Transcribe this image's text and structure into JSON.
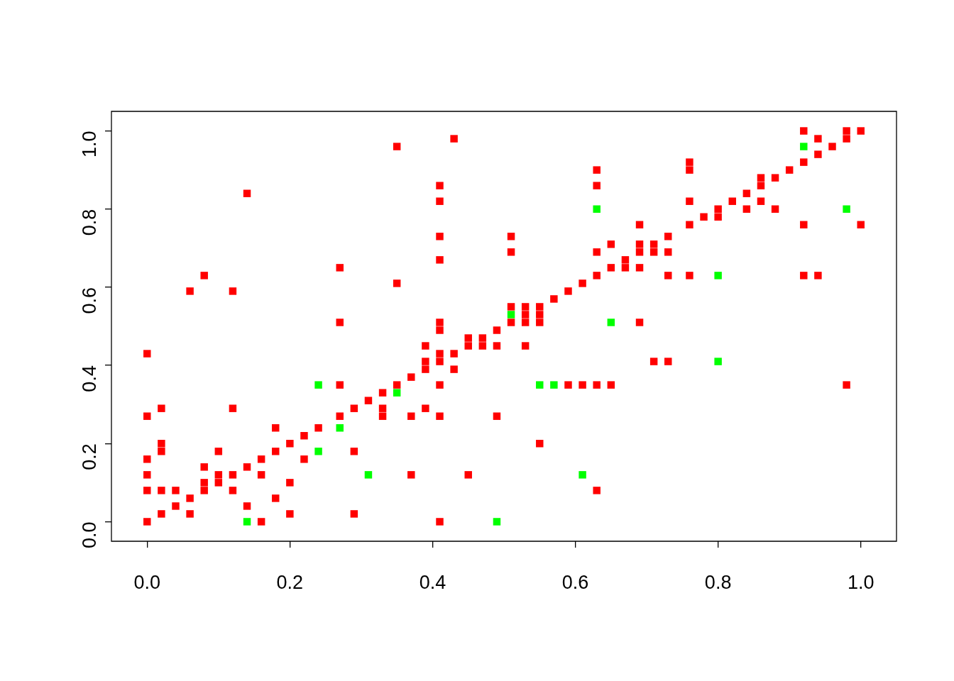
{
  "chart_data": {
    "type": "scatter",
    "marker": "square",
    "xlim": [
      -0.05,
      1.05
    ],
    "ylim": [
      -0.05,
      1.05
    ],
    "xticks": [
      {
        "value": 0,
        "label": "0.0"
      },
      {
        "value": 0.2,
        "label": "0.2"
      },
      {
        "value": 0.4,
        "label": "0.4"
      },
      {
        "value": 0.6,
        "label": "0.6"
      },
      {
        "value": 0.8,
        "label": "0.8"
      },
      {
        "value": 1,
        "label": "1.0"
      }
    ],
    "yticks": [
      {
        "value": 0,
        "label": "0.0"
      },
      {
        "value": 0.2,
        "label": "0.2"
      },
      {
        "value": 0.4,
        "label": "0.4"
      },
      {
        "value": 0.6,
        "label": "0.6"
      },
      {
        "value": 0.8,
        "label": "0.8"
      },
      {
        "value": 1,
        "label": "1.0"
      }
    ],
    "series": [
      {
        "color": "#ff0000",
        "x": [
          0,
          0.16,
          0.41,
          0.02,
          0.06,
          0.2,
          0.29,
          0.04,
          0.14,
          0.06,
          0.18,
          0,
          0.02,
          0.04,
          0.08,
          0.12,
          0.63,
          0.08,
          0.1,
          0.2,
          0,
          0.1,
          0.12,
          0.16,
          0.37,
          0.45,
          0.08,
          0.14,
          0,
          0.16,
          0.22,
          0.02,
          0.1,
          0.18,
          0.29,
          0.02,
          0.2,
          0.55,
          0.22,
          0.18,
          0.24,
          0,
          0.27,
          0.33,
          0.37,
          0.41,
          0.49,
          0.02,
          0.12,
          0.29,
          0.33,
          0.39,
          0.31,
          0.33,
          0.27,
          0.35,
          0.41,
          0.59,
          0.61,
          0.63,
          0.65,
          0.98,
          0.37,
          0.39,
          0.43,
          0.39,
          0.41,
          0.71,
          0.73,
          0,
          0.41,
          0.43,
          0.39,
          0.45,
          0.47,
          0.49,
          0.53,
          0.45,
          0.47,
          0.41,
          0.49,
          0.27,
          0.41,
          0.51,
          0.53,
          0.55,
          0.69,
          0.53,
          0.55,
          0.51,
          0.53,
          0.55,
          0.57,
          0.06,
          0.12,
          0.59,
          0.35,
          0.61,
          0.08,
          0.63,
          0.73,
          0.76,
          0.92,
          0.94,
          0.27,
          0.65,
          0.67,
          0.69,
          0.41,
          0.67,
          0.51,
          0.63,
          0.69,
          0.71,
          0.73,
          0.65,
          0.69,
          0.71,
          0.41,
          0.51,
          0.73,
          0.69,
          0.76,
          0.92,
          1,
          0.78,
          0.8,
          0.8,
          0.84,
          0.88,
          0.41,
          0.76,
          0.82,
          0.86,
          0.14,
          0.84,
          0.41,
          0.63,
          0.86,
          0.86,
          0.88,
          0.63,
          0.76,
          0.9,
          0.76,
          0.92,
          0.94,
          0.35,
          0.96,
          0.43,
          0.94,
          0.98,
          0.92,
          0.98,
          1
        ],
        "values": [
          0,
          0,
          0,
          0.02,
          0.02,
          0.02,
          0.02,
          0.04,
          0.04,
          0.06,
          0.06,
          0.08,
          0.08,
          0.08,
          0.08,
          0.08,
          0.08,
          0.1,
          0.1,
          0.1,
          0.12,
          0.12,
          0.12,
          0.12,
          0.12,
          0.12,
          0.14,
          0.14,
          0.16,
          0.16,
          0.16,
          0.18,
          0.18,
          0.18,
          0.18,
          0.2,
          0.2,
          0.2,
          0.22,
          0.24,
          0.24,
          0.27,
          0.27,
          0.27,
          0.27,
          0.27,
          0.27,
          0.29,
          0.29,
          0.29,
          0.29,
          0.29,
          0.31,
          0.33,
          0.35,
          0.35,
          0.35,
          0.35,
          0.35,
          0.35,
          0.35,
          0.35,
          0.37,
          0.39,
          0.39,
          0.41,
          0.41,
          0.41,
          0.41,
          0.43,
          0.43,
          0.43,
          0.45,
          0.45,
          0.45,
          0.45,
          0.45,
          0.47,
          0.47,
          0.49,
          0.49,
          0.51,
          0.51,
          0.51,
          0.51,
          0.51,
          0.51,
          0.53,
          0.53,
          0.55,
          0.55,
          0.55,
          0.57,
          0.59,
          0.59,
          0.59,
          0.61,
          0.61,
          0.63,
          0.63,
          0.63,
          0.63,
          0.63,
          0.63,
          0.65,
          0.65,
          0.65,
          0.65,
          0.67,
          0.67,
          0.69,
          0.69,
          0.69,
          0.69,
          0.69,
          0.71,
          0.71,
          0.71,
          0.73,
          0.73,
          0.73,
          0.76,
          0.76,
          0.76,
          0.76,
          0.78,
          0.78,
          0.8,
          0.8,
          0.8,
          0.82,
          0.82,
          0.82,
          0.82,
          0.84,
          0.84,
          0.86,
          0.86,
          0.86,
          0.88,
          0.88,
          0.9,
          0.9,
          0.9,
          0.92,
          0.92,
          0.94,
          0.96,
          0.96,
          0.98,
          0.98,
          0.98,
          1,
          1,
          1
        ]
      },
      {
        "color": "#00ff00",
        "x": [
          0.14,
          0.49,
          0.31,
          0.61,
          0.24,
          0.27,
          0.35,
          0.24,
          0.55,
          0.57,
          0.8,
          0.65,
          0.51,
          0.8,
          0.63,
          0.98,
          0.92
        ],
        "values": [
          0,
          0,
          0.12,
          0.12,
          0.18,
          0.24,
          0.33,
          0.35,
          0.35,
          0.35,
          0.41,
          0.51,
          0.53,
          0.63,
          0.8,
          0.8,
          0.96
        ]
      }
    ]
  }
}
